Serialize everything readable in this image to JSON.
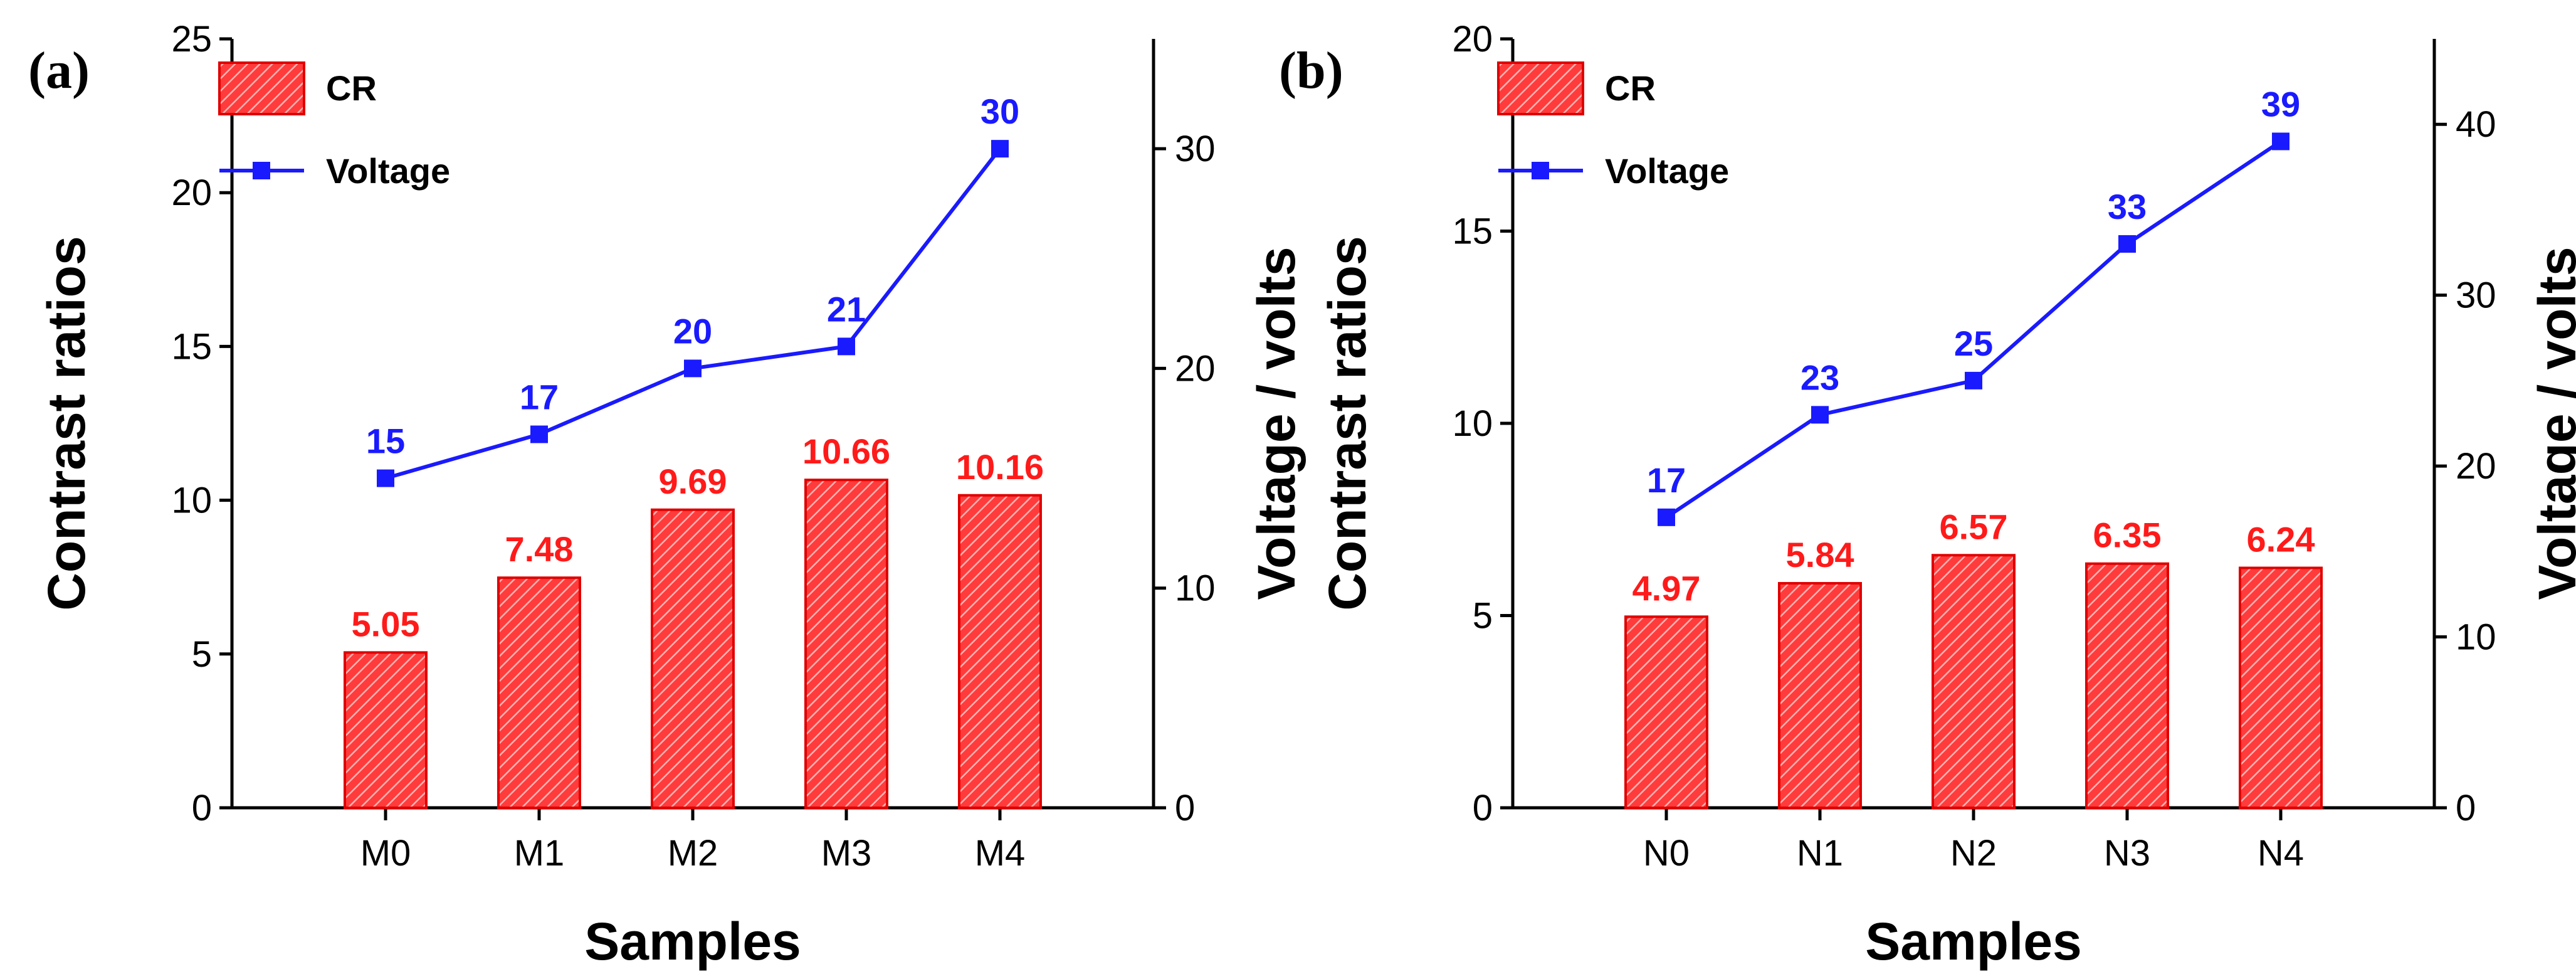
{
  "colors": {
    "bar": "#ff1f1f",
    "bar_stroke": "#e00000",
    "line": "#1a1aff",
    "bar_label": "#ff1a1a",
    "line_label": "#1a1aff"
  },
  "chart_data": [
    {
      "type": "bar+line",
      "panel_label": "(a)",
      "categories": [
        "M0",
        "M1",
        "M2",
        "M3",
        "M4"
      ],
      "xlabel": "Samples",
      "ylabel": "Contrast ratios",
      "ylim": [
        0,
        25
      ],
      "yticks": [
        0,
        5,
        10,
        15,
        20,
        25
      ],
      "y2label": "Voltage / volts",
      "y2lim": [
        0,
        35
      ],
      "y2ticks": [
        0,
        10,
        20,
        30
      ],
      "series": [
        {
          "name": "CR",
          "type": "bar",
          "axis": "left",
          "values": [
            5.05,
            7.48,
            9.69,
            10.66,
            10.16
          ],
          "labels": [
            "5.05",
            "7.48",
            "9.69",
            "10.66",
            "10.16"
          ]
        },
        {
          "name": "Voltage",
          "type": "line",
          "axis": "right",
          "values": [
            15,
            17,
            20,
            21,
            30
          ],
          "labels": [
            "15",
            "17",
            "20",
            "21",
            "30"
          ]
        }
      ],
      "legend": [
        "CR",
        "Voltage"
      ],
      "legend_position": "top-left"
    },
    {
      "type": "bar+line",
      "panel_label": "(b)",
      "categories": [
        "N0",
        "N1",
        "N2",
        "N3",
        "N4"
      ],
      "xlabel": "Samples",
      "ylabel": "Contrast ratios",
      "ylim": [
        0,
        20
      ],
      "yticks": [
        0,
        5,
        10,
        15,
        20
      ],
      "y2label": "Voltage / volts",
      "y2lim": [
        0,
        45
      ],
      "y2ticks": [
        0,
        10,
        20,
        30,
        40
      ],
      "series": [
        {
          "name": "CR",
          "type": "bar",
          "axis": "left",
          "values": [
            4.97,
            5.84,
            6.57,
            6.35,
            6.24
          ],
          "labels": [
            "4.97",
            "5.84",
            "6.57",
            "6.35",
            "6.24"
          ]
        },
        {
          "name": "Voltage",
          "type": "line",
          "axis": "right",
          "values": [
            17,
            23,
            25,
            33,
            39
          ],
          "labels": [
            "17",
            "23",
            "25",
            "33",
            "39"
          ]
        }
      ],
      "legend": [
        "CR",
        "Voltage"
      ],
      "legend_position": "top-left"
    }
  ]
}
